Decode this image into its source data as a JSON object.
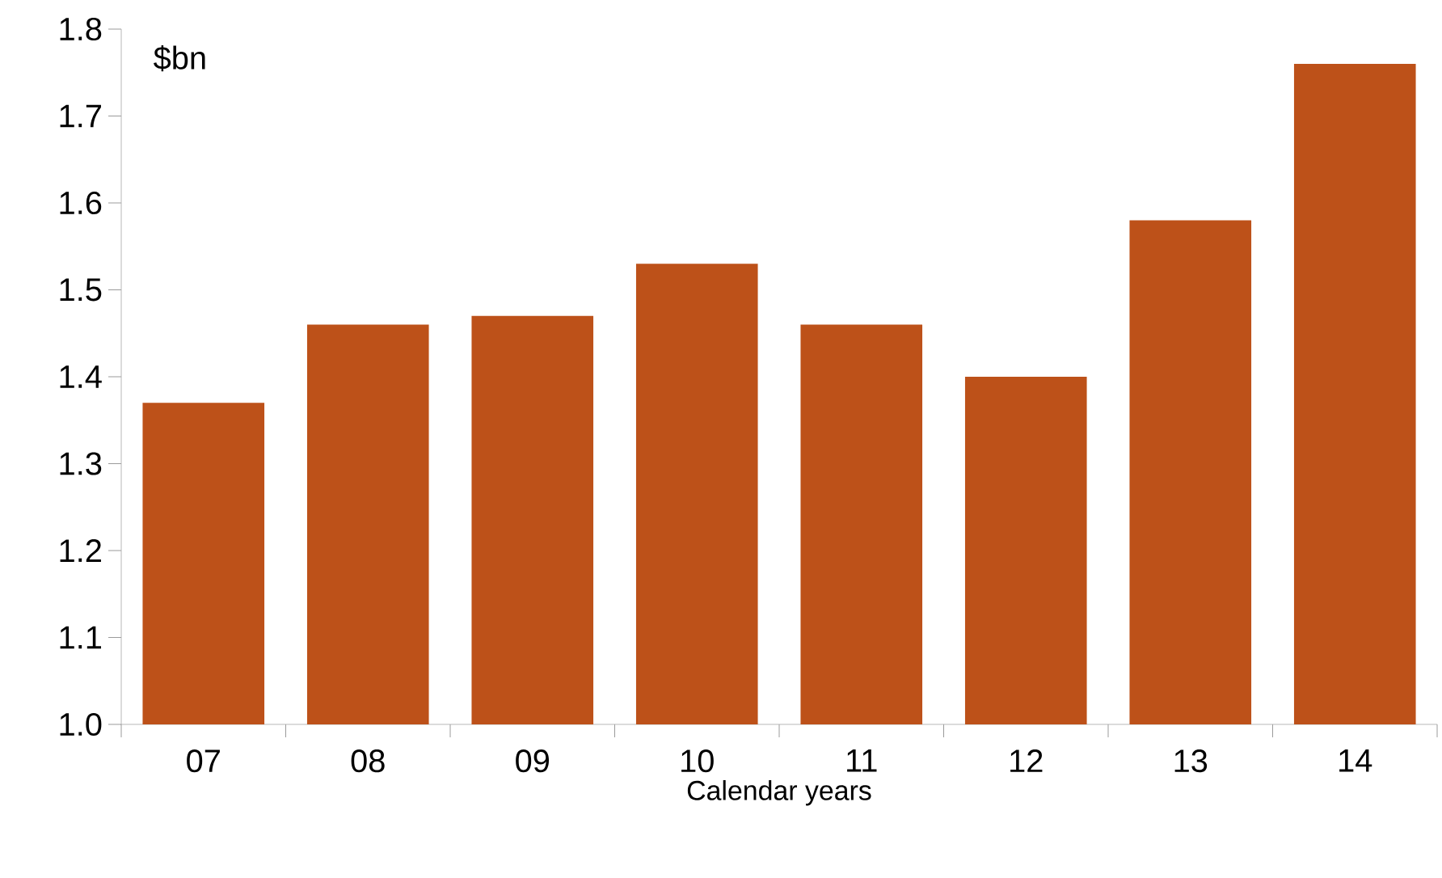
{
  "chart_data": {
    "type": "bar",
    "ylabel": "$bn",
    "xlabel": "Calendar years",
    "categories": [
      "07",
      "08",
      "09",
      "10",
      "11",
      "12",
      "13",
      "14"
    ],
    "values": [
      1.37,
      1.46,
      1.47,
      1.53,
      1.46,
      1.4,
      1.58,
      1.76
    ],
    "color": "#bd5119",
    "ylim": [
      1.0,
      1.8
    ],
    "yticks": [
      {
        "value": 1.0,
        "label": "1.0"
      },
      1.1,
      1.2,
      1.3,
      1.4,
      1.5,
      1.6,
      1.7,
      1.8
    ],
    "grid": false
  }
}
